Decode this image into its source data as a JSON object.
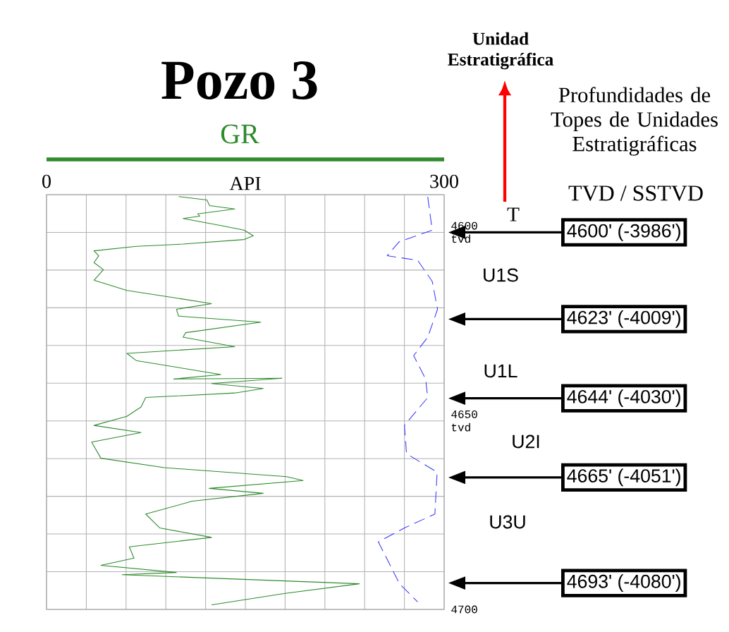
{
  "chart_data": {
    "type": "line",
    "title": "Pozo 3",
    "xlabel": "API",
    "xlim": [
      0,
      300
    ],
    "ylim": [
      4700,
      4590
    ],
    "xticks": [
      0,
      {
        "value": 30,
        "label": null
      },
      {
        "value": 60,
        "label": null
      },
      {
        "value": 90,
        "label": null
      },
      {
        "value": 120,
        "label": null
      },
      {
        "value": 150,
        "label": null
      },
      {
        "value": 180,
        "label": null
      },
      {
        "value": 210,
        "label": null
      },
      {
        "value": 240,
        "label": null
      },
      {
        "value": 270,
        "label": null
      },
      300
    ],
    "yticks": [
      {
        "value": 4590,
        "label": null
      },
      {
        "value": 4600,
        "label": "4600 tvd"
      },
      {
        "value": 4610,
        "label": null
      },
      {
        "value": 4620,
        "label": null
      },
      {
        "value": 4630,
        "label": null
      },
      {
        "value": 4640,
        "label": null
      },
      {
        "value": 4650,
        "label": "4650 tvd"
      },
      {
        "value": 4660,
        "label": null
      },
      {
        "value": 4670,
        "label": null
      },
      {
        "value": 4680,
        "label": null
      },
      {
        "value": 4690,
        "label": null
      },
      4700
    ],
    "grid": true,
    "legend": "top",
    "marker": "none",
    "series": [
      {
        "name": "GR",
        "color": "#2e8b2e",
        "line_style": "solid",
        "x": [
          99.6,
          121,
          123,
          142,
          114,
          115.6,
          103,
          131.5,
          149,
          156,
          149,
          103,
          67.7,
          35.8,
          39.4,
          35.8,
          42.9,
          35.8,
          60.6,
          96,
          124.5,
          98,
          99.6,
          161.7,
          105,
          103,
          142,
          60.6,
          67.7,
          131.5,
          96,
          177.6,
          124.5,
          163.5,
          142,
          74.8,
          71.3,
          60.6,
          35.8,
          71.3,
          34,
          41,
          89,
          181,
          193.6,
          122.7,
          163.5,
          110,
          74.8,
          85.5,
          124.5,
          62.4,
          66,
          41,
          97.9,
          57,
          236,
          181,
          124.5
        ],
        "values": [
          4590.5,
          4591.4,
          4592.9,
          4593.8,
          4595.1,
          4595.7,
          4596.3,
          4598.2,
          4599.4,
          4600.9,
          4601.9,
          4603.1,
          4603.7,
          4604.9,
          4606.2,
          4608,
          4609.9,
          4612.7,
          4615.4,
          4617.3,
          4618.9,
          4620.4,
          4622.2,
          4623.8,
          4626.6,
          4627.8,
          4630.3,
          4632.1,
          4634,
          4637.7,
          4638.9,
          4638.7,
          4640.1,
          4641.4,
          4642.6,
          4643.8,
          4646.3,
          4648.8,
          4651.2,
          4653.1,
          4655.6,
          4659.9,
          4662.4,
          4664.8,
          4665.8,
          4667.9,
          4669.2,
          4671.3,
          4674.7,
          4678.4,
          4680.9,
          4683.4,
          4686.4,
          4688.3,
          4690.2,
          4690.8,
          4693.2,
          4695.7,
          4698.8
        ]
      },
      {
        "color": "#3a3aff",
        "line_style": "dashed",
        "x": [
          287.6,
          291,
          266,
          257,
          280,
          291,
          295,
          287.6,
          277,
          286,
          287.6,
          270,
          271.6,
          294.7,
          293,
          270,
          250.3,
          255.7,
          266.3,
          280
        ],
        "values": [
          4590.6,
          4599.4,
          4602.5,
          4606.2,
          4607.4,
          4613,
          4620.4,
          4627.8,
          4632.7,
          4638.9,
          4643.8,
          4651.2,
          4658.7,
          4663.6,
          4674.7,
          4678.4,
          4682.1,
          4685.8,
          4693.2,
          4698
        ]
      }
    ],
    "ref_lines": [
      {
        "axis": "y",
        "value": 4600,
        "label": "4600'  (-3986')"
      },
      {
        "axis": "y",
        "value": 4623,
        "label": "4623'  (-4009')"
      },
      {
        "axis": "y",
        "value": 4644,
        "label": "4644'  (-4030')"
      },
      {
        "axis": "y",
        "value": 4665,
        "label": "4665'  (-4051')"
      },
      {
        "axis": "y",
        "value": 4693,
        "label": "4693'  (-4080')"
      }
    ],
    "annotations": [
      "Unidad Estratigráfica",
      "Profundidades de Topes de Unidades Estratigráficas",
      "TVD / SSTVD",
      "T",
      "U1S",
      "U1L",
      "U2I",
      "U3U"
    ]
  }
}
